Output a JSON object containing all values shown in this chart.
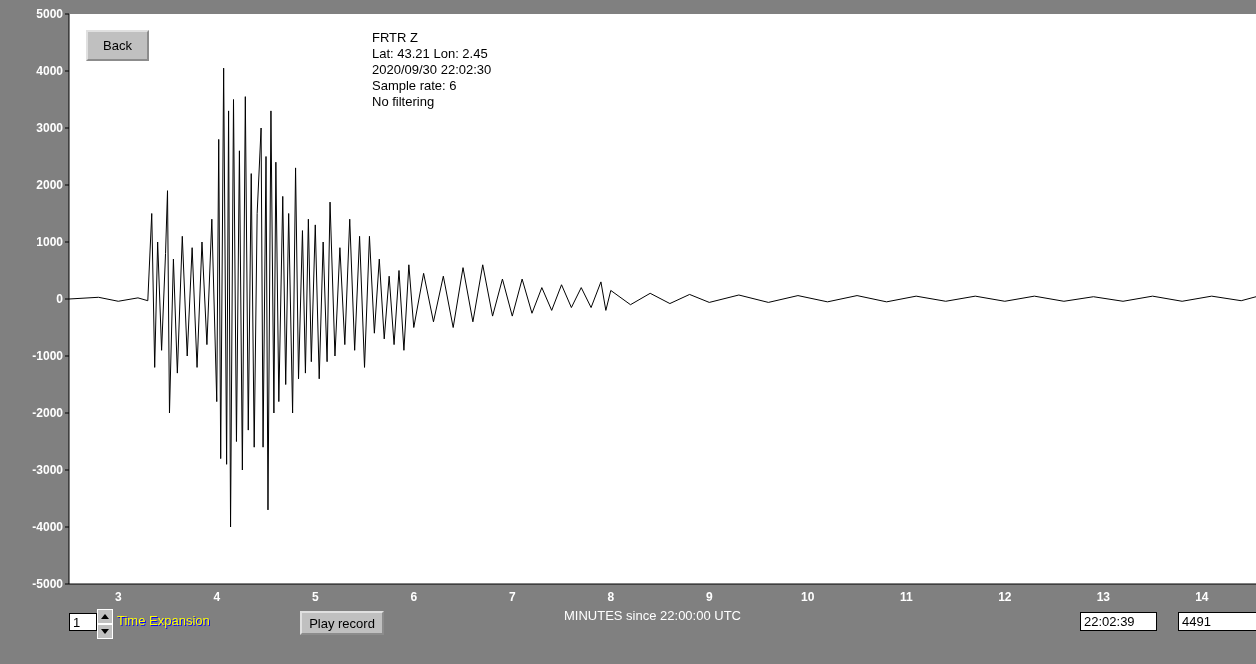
{
  "chart_data": {
    "type": "line",
    "xlabel": "MINUTES since 22:00:00 UTC",
    "annotations": [
      "FRTR  Z",
      "Lat: 43.21 Lon: 2.45",
      "2020/09/30 22:02:30",
      "Sample rate: 6",
      "No filtering",
      "Back",
      "1",
      "Time Expansion",
      "Play record",
      "22:02:39",
      "4491"
    ],
    "xlim": [
      2.5,
      14.55
    ],
    "xticks": [
      3,
      4,
      5,
      6,
      7,
      8,
      9,
      10,
      11,
      12,
      13,
      14
    ],
    "ylim": [
      -5000,
      5000
    ],
    "yticks": [
      -5000,
      -4000,
      -3000,
      -2000,
      -1000,
      0,
      1000,
      2000,
      3000,
      4000,
      5000
    ],
    "marker": "none",
    "series": [
      {
        "color": "#000000",
        "x": [
          2.5,
          2.8,
          3.0,
          3.2,
          3.3,
          3.34,
          3.37,
          3.4,
          3.44,
          3.48,
          3.5,
          3.52,
          3.56,
          3.6,
          3.65,
          3.7,
          3.75,
          3.8,
          3.85,
          3.9,
          3.95,
          4.0,
          4.02,
          4.04,
          4.07,
          4.1,
          4.12,
          4.14,
          4.17,
          4.2,
          4.23,
          4.26,
          4.29,
          4.32,
          4.35,
          4.38,
          4.41,
          4.45,
          4.47,
          4.5,
          4.52,
          4.55,
          4.58,
          4.6,
          4.63,
          4.67,
          4.7,
          4.73,
          4.77,
          4.8,
          4.83,
          4.87,
          4.9,
          4.93,
          4.96,
          5.0,
          5.04,
          5.08,
          5.12,
          5.15,
          5.2,
          5.25,
          5.3,
          5.35,
          5.4,
          5.45,
          5.5,
          5.55,
          5.6,
          5.65,
          5.7,
          5.75,
          5.8,
          5.85,
          5.9,
          5.95,
          6.0,
          6.1,
          6.2,
          6.3,
          6.4,
          6.5,
          6.6,
          6.7,
          6.8,
          6.9,
          7.0,
          7.1,
          7.2,
          7.3,
          7.4,
          7.5,
          7.6,
          7.7,
          7.8,
          7.9,
          7.95,
          8.0,
          8.2,
          8.4,
          8.6,
          8.8,
          9.0,
          9.3,
          9.6,
          9.9,
          10.2,
          10.5,
          10.8,
          11.1,
          11.4,
          11.7,
          12.0,
          12.3,
          12.6,
          12.9,
          13.2,
          13.5,
          13.8,
          14.1,
          14.4,
          14.55
        ],
        "values": [
          0,
          30,
          -40,
          20,
          -30,
          1500,
          -1200,
          1000,
          -900,
          800,
          1900,
          -2000,
          700,
          -1300,
          1100,
          -1000,
          900,
          -1200,
          1000,
          -800,
          1400,
          -1800,
          2800,
          -2800,
          4050,
          -2900,
          3300,
          -4000,
          3500,
          -2500,
          2600,
          -3000,
          3550,
          -2300,
          2200,
          -2600,
          1500,
          3000,
          -2600,
          2500,
          -3700,
          3300,
          -2000,
          2400,
          -1800,
          1800,
          -1500,
          1500,
          -2000,
          2300,
          -1400,
          1200,
          -1300,
          1400,
          -1100,
          1300,
          -1400,
          1000,
          -1100,
          1700,
          -1000,
          900,
          -800,
          1400,
          -900,
          1100,
          -1200,
          1100,
          -600,
          700,
          -700,
          400,
          -800,
          500,
          -900,
          600,
          -500,
          450,
          -400,
          400,
          -500,
          550,
          -400,
          600,
          -300,
          350,
          -300,
          350,
          -250,
          200,
          -200,
          250,
          -150,
          200,
          -150,
          300,
          -200,
          150,
          -100,
          100,
          -80,
          80,
          -60,
          70,
          -60,
          60,
          -50,
          60,
          -50,
          50,
          -40,
          50,
          -40,
          50,
          -40,
          40,
          -40,
          50,
          -40,
          50,
          -30,
          40
        ]
      }
    ]
  }
}
